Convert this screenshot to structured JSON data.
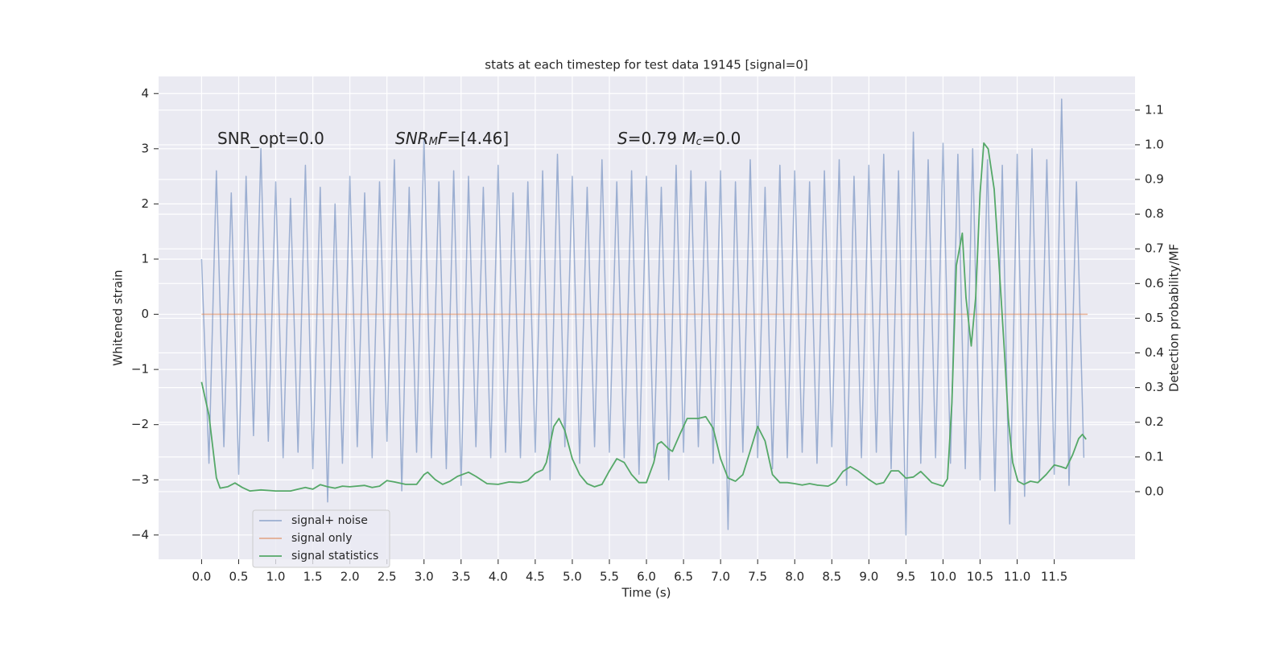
{
  "chart_data": {
    "type": "line",
    "title": "stats at each timestep for test data 19145 [signal=0]",
    "xlabel": "Time (s)",
    "ylabel": "Whitened strain",
    "y2label": "Detection probability/MF",
    "xlim": [
      -0.58,
      12.59
    ],
    "ylim": [
      -4.44,
      4.31
    ],
    "y2lim": [
      -0.195,
      1.197
    ],
    "xticks": [
      {
        "value": 0,
        "label": "0.0"
      },
      0.5,
      {
        "value": 1,
        "label": "1.0"
      },
      1.5,
      {
        "value": 2,
        "label": "2.0"
      },
      2.5,
      {
        "value": 3,
        "label": "3.0"
      },
      3.5,
      {
        "value": 4,
        "label": "4.0"
      },
      4.5,
      {
        "value": 5,
        "label": "5.0"
      },
      5.5,
      {
        "value": 6,
        "label": "6.0"
      },
      6.5,
      {
        "value": 7,
        "label": "7.0"
      },
      7.5,
      {
        "value": 8,
        "label": "8.0"
      },
      8.5,
      {
        "value": 9,
        "label": "9.0"
      },
      9.5,
      {
        "value": 10,
        "label": "10.0"
      },
      10.5,
      {
        "value": 11,
        "label": "11.0"
      },
      11.5
    ],
    "yticks": [
      {
        "value": -4,
        "label": "−4"
      },
      {
        "value": -3,
        "label": "−3"
      },
      {
        "value": -2,
        "label": "−2"
      },
      {
        "value": -1,
        "label": "−1"
      },
      0,
      1,
      2,
      3,
      4
    ],
    "y2ticks": [
      {
        "value": 0,
        "label": "0.0"
      },
      0.1,
      0.2,
      0.3,
      0.4,
      0.5,
      0.6,
      0.7,
      0.8,
      0.9,
      {
        "value": 1,
        "label": "1.0"
      },
      1.1
    ],
    "grid": true,
    "legend": "lower left",
    "annotations": [
      [
        {
          "text": "SNR_opt=0.0"
        }
      ],
      [
        {
          "text": "SNR",
          "style": "italic"
        },
        {
          "text": "M",
          "style": "sub"
        },
        {
          "text": "F",
          "style": "italic"
        },
        {
          "text": "=[4.46]"
        }
      ],
      [
        {
          "text": "S",
          "style": "italic"
        },
        {
          "text": "=0.79   "
        },
        {
          "text": "M",
          "style": "italic"
        },
        {
          "text": "c",
          "style": "sub"
        },
        {
          "text": "=0.0"
        }
      ]
    ],
    "series": [
      {
        "name": "signal+ noise",
        "color": "#4c72b0",
        "opacity": 0.5,
        "x": [
          0,
          0.1,
          0.2,
          0.3,
          0.4,
          0.5,
          0.6,
          0.7,
          0.8,
          0.9,
          1,
          1.1,
          1.2,
          1.3,
          1.4,
          1.5,
          1.6,
          1.7,
          1.8,
          1.9,
          2,
          2.1,
          2.2,
          2.3,
          2.4,
          2.5,
          2.6,
          2.7,
          2.8,
          2.9,
          3,
          3.1,
          3.2,
          3.3,
          3.4,
          3.5,
          3.6,
          3.7,
          3.8,
          3.9,
          4,
          4.1,
          4.2,
          4.3,
          4.4,
          4.5,
          4.6,
          4.7,
          4.8,
          4.9,
          5,
          5.1,
          5.2,
          5.3,
          5.4,
          5.5,
          5.6,
          5.7,
          5.8,
          5.9,
          6,
          6.1,
          6.2,
          6.3,
          6.4,
          6.5,
          6.6,
          6.7,
          6.8,
          6.9,
          7,
          7.1,
          7.2,
          7.3,
          7.4,
          7.5,
          7.6,
          7.7,
          7.8,
          7.9,
          8,
          8.1,
          8.2,
          8.3,
          8.4,
          8.5,
          8.6,
          8.7,
          8.8,
          8.9,
          9,
          9.1,
          9.2,
          9.3,
          9.4,
          9.5,
          9.6,
          9.7,
          9.8,
          9.9,
          10,
          10.1,
          10.2,
          10.3,
          10.4,
          10.5,
          10.6,
          10.7,
          10.8,
          10.9,
          11,
          11.1,
          11.2,
          11.3,
          11.4,
          11.5,
          11.6,
          11.7,
          11.8,
          11.9
        ],
        "values": [
          1.0,
          -2.7,
          2.6,
          -2.4,
          2.2,
          -2.9,
          2.5,
          -2.2,
          3.0,
          -2.3,
          2.4,
          -2.6,
          2.1,
          -2.5,
          2.7,
          -2.8,
          2.3,
          -3.4,
          2.0,
          -2.7,
          2.5,
          -2.4,
          2.2,
          -2.6,
          2.4,
          -2.3,
          2.8,
          -3.2,
          2.3,
          -2.5,
          3.2,
          -2.6,
          2.4,
          -2.8,
          2.6,
          -3.1,
          2.5,
          -2.4,
          2.3,
          -2.6,
          2.7,
          -2.5,
          2.2,
          -2.6,
          2.4,
          -2.5,
          2.6,
          -3.0,
          2.9,
          -2.4,
          2.5,
          -2.7,
          2.3,
          -2.4,
          2.8,
          -2.5,
          2.4,
          -2.6,
          2.6,
          -2.9,
          2.5,
          -2.6,
          2.3,
          -3.0,
          2.7,
          -2.5,
          2.6,
          -2.4,
          2.4,
          -2.7,
          2.6,
          -3.9,
          2.4,
          -2.5,
          2.8,
          -2.6,
          2.3,
          -2.8,
          2.7,
          -2.6,
          2.6,
          -2.5,
          2.4,
          -2.7,
          2.6,
          -2.4,
          2.8,
          -3.1,
          2.5,
          -2.6,
          2.7,
          -2.5,
          2.9,
          -2.8,
          2.6,
          -4.0,
          3.3,
          -2.7,
          2.8,
          -2.6,
          3.1,
          -2.7,
          2.9,
          -2.8,
          3.0,
          -3.0,
          2.8,
          -3.2,
          2.7,
          -3.8,
          2.9,
          -3.3,
          3.0,
          -3.0,
          2.8,
          -2.9,
          3.9,
          -3.1,
          2.4,
          -2.6
        ]
      },
      {
        "name": "signal only",
        "color": "#dd8452",
        "opacity": 0.6,
        "x": [
          0,
          11.95
        ],
        "values": [
          0,
          0
        ]
      },
      {
        "name": "signal statistics",
        "color": "#55a868",
        "axis": "y2",
        "x": [
          0,
          0.1,
          0.2,
          0.25,
          0.35,
          0.45,
          0.55,
          0.65,
          0.8,
          1.0,
          1.2,
          1.3,
          1.4,
          1.5,
          1.6,
          1.7,
          1.8,
          1.9,
          2.0,
          2.2,
          2.3,
          2.4,
          2.5,
          2.6,
          2.75,
          2.9,
          3.0,
          3.05,
          3.15,
          3.25,
          3.35,
          3.45,
          3.6,
          3.7,
          3.85,
          4.0,
          4.15,
          4.3,
          4.4,
          4.5,
          4.6,
          4.65,
          4.75,
          4.82,
          4.9,
          5.0,
          5.1,
          5.2,
          5.3,
          5.4,
          5.5,
          5.6,
          5.7,
          5.8,
          5.9,
          6.0,
          6.1,
          6.15,
          6.2,
          6.3,
          6.35,
          6.45,
          6.55,
          6.7,
          6.8,
          6.9,
          7.0,
          7.1,
          7.2,
          7.3,
          7.4,
          7.5,
          7.6,
          7.7,
          7.8,
          7.9,
          8.0,
          8.1,
          8.2,
          8.3,
          8.45,
          8.55,
          8.65,
          8.75,
          8.85,
          9.0,
          9.1,
          9.2,
          9.3,
          9.4,
          9.5,
          9.6,
          9.7,
          9.85,
          10.0,
          10.06,
          10.12,
          10.18,
          10.26,
          10.31,
          10.38,
          10.44,
          10.5,
          10.55,
          10.61,
          10.69,
          10.75,
          10.83,
          10.88,
          10.94,
          11.01,
          11.09,
          11.18,
          11.28,
          11.39,
          11.5,
          11.59,
          11.66,
          11.75,
          11.83,
          11.88,
          11.93
        ],
        "values": [
          0.316,
          0.22,
          0.04,
          0.01,
          0.014,
          0.025,
          0.012,
          0.002,
          0.005,
          0.002,
          0.002,
          0.007,
          0.012,
          0.007,
          0.02,
          0.014,
          0.01,
          0.016,
          0.014,
          0.018,
          0.012,
          0.016,
          0.032,
          0.028,
          0.021,
          0.021,
          0.049,
          0.056,
          0.035,
          0.021,
          0.03,
          0.044,
          0.056,
          0.044,
          0.023,
          0.021,
          0.028,
          0.026,
          0.032,
          0.053,
          0.063,
          0.084,
          0.188,
          0.211,
          0.176,
          0.095,
          0.049,
          0.023,
          0.014,
          0.021,
          0.06,
          0.095,
          0.084,
          0.049,
          0.026,
          0.026,
          0.084,
          0.137,
          0.144,
          0.123,
          0.116,
          0.165,
          0.211,
          0.211,
          0.216,
          0.183,
          0.095,
          0.039,
          0.03,
          0.049,
          0.118,
          0.188,
          0.146,
          0.049,
          0.026,
          0.026,
          0.023,
          0.019,
          0.023,
          0.019,
          0.016,
          0.028,
          0.058,
          0.072,
          0.06,
          0.035,
          0.021,
          0.026,
          0.06,
          0.06,
          0.039,
          0.042,
          0.058,
          0.026,
          0.016,
          0.037,
          0.258,
          0.652,
          0.745,
          0.559,
          0.42,
          0.559,
          0.861,
          1.005,
          0.988,
          0.872,
          0.675,
          0.397,
          0.211,
          0.084,
          0.03,
          0.021,
          0.03,
          0.026,
          0.049,
          0.077,
          0.072,
          0.067,
          0.107,
          0.153,
          0.165,
          0.151
        ]
      }
    ]
  }
}
